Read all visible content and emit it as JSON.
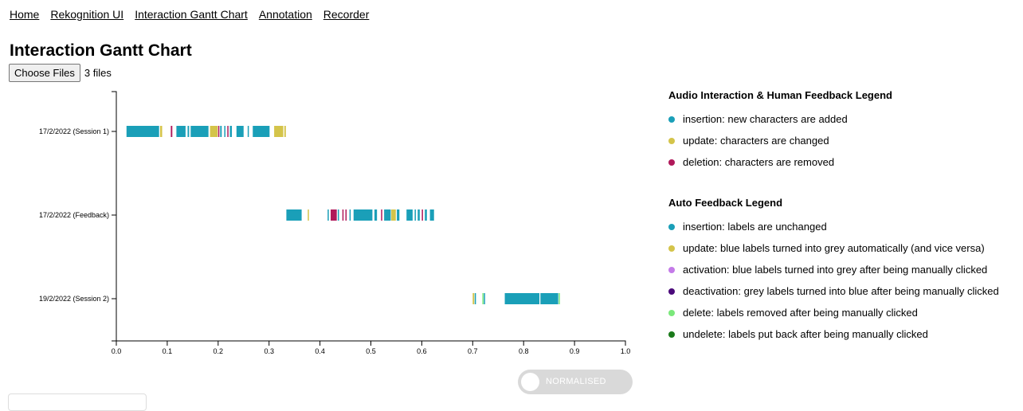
{
  "nav": [
    {
      "label": "Home"
    },
    {
      "label": "Rekognition UI"
    },
    {
      "label": "Interaction Gantt Chart"
    },
    {
      "label": "Annotation"
    },
    {
      "label": "Recorder"
    }
  ],
  "page_title": "Interaction Gantt Chart",
  "file_input": {
    "button_label": "Choose Files",
    "status": "3 files"
  },
  "toggle": {
    "label": "NORMALISED",
    "on": false
  },
  "legend_audio": {
    "title": "Audio Interaction & Human Feedback Legend",
    "items": [
      {
        "label": "insertion: new characters are added",
        "color": "#1a9fb8"
      },
      {
        "label": "update: characters are changed",
        "color": "#d4c44a"
      },
      {
        "label": "deletion: characters are removed",
        "color": "#b0195a"
      }
    ]
  },
  "legend_auto": {
    "title": "Auto Feedback Legend",
    "items": [
      {
        "label": "insertion: labels are unchanged",
        "color": "#1a9fb8"
      },
      {
        "label": "update: blue labels turned into grey automatically (and vice versa)",
        "color": "#d4c44a"
      },
      {
        "label": "activation: blue labels turned into grey after being manually clicked",
        "color": "#c47be8"
      },
      {
        "label": "deactivation: grey labels turned into blue after being manually clicked",
        "color": "#4b0a7a"
      },
      {
        "label": "delete: labels removed after being manually clicked",
        "color": "#7be87b"
      },
      {
        "label": "undelete: labels put back after being manually clicked",
        "color": "#1a7a1a"
      }
    ]
  },
  "chart_data": {
    "type": "gantt",
    "xlim": [
      0.0,
      1.0
    ],
    "x_ticks": [
      "0.0",
      "0.1",
      "0.2",
      "0.3",
      "0.4",
      "0.5",
      "0.6",
      "0.7",
      "0.8",
      "0.9",
      "1.0"
    ],
    "categories": [
      "17/2/2022 (Session 1)",
      "17/2/2022 (Feedback)",
      "19/2/2022 (Session 2)"
    ],
    "colors": {
      "insertion": "#1a9fb8",
      "update": "#d4c44a",
      "deletion": "#b0195a",
      "activation": "#c47be8",
      "deactivation": "#4b0a7a",
      "delete": "#7be87b",
      "undelete": "#1a7a1a"
    },
    "series": [
      {
        "category": "17/2/2022 (Session 1)",
        "events": [
          {
            "start": 0.02,
            "end": 0.084,
            "type": "insertion"
          },
          {
            "start": 0.086,
            "end": 0.09,
            "type": "update"
          },
          {
            "start": 0.107,
            "end": 0.11,
            "type": "deletion"
          },
          {
            "start": 0.118,
            "end": 0.136,
            "type": "insertion"
          },
          {
            "start": 0.14,
            "end": 0.143,
            "type": "insertion"
          },
          {
            "start": 0.146,
            "end": 0.181,
            "type": "insertion"
          },
          {
            "start": 0.184,
            "end": 0.199,
            "type": "update"
          },
          {
            "start": 0.2,
            "end": 0.202,
            "type": "deletion"
          },
          {
            "start": 0.204,
            "end": 0.207,
            "type": "insertion"
          },
          {
            "start": 0.212,
            "end": 0.214,
            "type": "insertion"
          },
          {
            "start": 0.218,
            "end": 0.22,
            "type": "deletion"
          },
          {
            "start": 0.223,
            "end": 0.227,
            "type": "insertion"
          },
          {
            "start": 0.236,
            "end": 0.25,
            "type": "insertion"
          },
          {
            "start": 0.258,
            "end": 0.26,
            "type": "insertion"
          },
          {
            "start": 0.268,
            "end": 0.301,
            "type": "insertion"
          },
          {
            "start": 0.31,
            "end": 0.328,
            "type": "update"
          },
          {
            "start": 0.33,
            "end": 0.333,
            "type": "update"
          }
        ]
      },
      {
        "category": "17/2/2022 (Feedback)",
        "events": [
          {
            "start": 0.334,
            "end": 0.364,
            "type": "insertion"
          },
          {
            "start": 0.376,
            "end": 0.378,
            "type": "update"
          },
          {
            "start": 0.415,
            "end": 0.417,
            "type": "insertion"
          },
          {
            "start": 0.421,
            "end": 0.433,
            "type": "deletion"
          },
          {
            "start": 0.435,
            "end": 0.437,
            "type": "insertion"
          },
          {
            "start": 0.444,
            "end": 0.446,
            "type": "deletion"
          },
          {
            "start": 0.45,
            "end": 0.452,
            "type": "deletion"
          },
          {
            "start": 0.458,
            "end": 0.46,
            "type": "insertion"
          },
          {
            "start": 0.466,
            "end": 0.503,
            "type": "insertion"
          },
          {
            "start": 0.507,
            "end": 0.512,
            "type": "insertion"
          },
          {
            "start": 0.52,
            "end": 0.522,
            "type": "deletion"
          },
          {
            "start": 0.526,
            "end": 0.539,
            "type": "insertion"
          },
          {
            "start": 0.54,
            "end": 0.549,
            "type": "update"
          },
          {
            "start": 0.551,
            "end": 0.556,
            "type": "insertion"
          },
          {
            "start": 0.57,
            "end": 0.582,
            "type": "insertion"
          },
          {
            "start": 0.586,
            "end": 0.588,
            "type": "insertion"
          },
          {
            "start": 0.592,
            "end": 0.596,
            "type": "insertion"
          },
          {
            "start": 0.6,
            "end": 0.602,
            "type": "deletion"
          },
          {
            "start": 0.606,
            "end": 0.61,
            "type": "insertion"
          },
          {
            "start": 0.616,
            "end": 0.624,
            "type": "insertion"
          }
        ]
      },
      {
        "category": "19/2/2022 (Session 2)",
        "events": [
          {
            "start": 0.7,
            "end": 0.703,
            "type": "update"
          },
          {
            "start": 0.704,
            "end": 0.706,
            "type": "insertion"
          },
          {
            "start": 0.719,
            "end": 0.721,
            "type": "delete"
          },
          {
            "start": 0.722,
            "end": 0.724,
            "type": "insertion"
          },
          {
            "start": 0.763,
            "end": 0.831,
            "type": "insertion"
          },
          {
            "start": 0.833,
            "end": 0.868,
            "type": "insertion"
          },
          {
            "start": 0.869,
            "end": 0.871,
            "type": "delete"
          }
        ]
      }
    ]
  }
}
